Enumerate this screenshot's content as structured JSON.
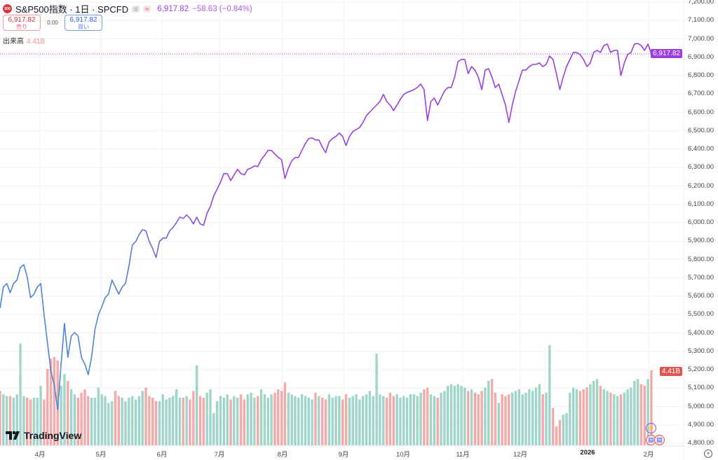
{
  "header": {
    "logo_text": "500",
    "title": "S&P500指数 · 1日 · SPCFD",
    "pill1": "=",
    "pill2": "≈",
    "price": "6,917.82",
    "change": "−58.63 (−0.84%)"
  },
  "trade": {
    "sell_price": "6,917.82",
    "sell_label": "売り",
    "spread": "0.00",
    "buy_price": "6,917.82",
    "buy_label": "買い"
  },
  "volume": {
    "label": "出来高",
    "value": "4.41B"
  },
  "badges": {
    "price": "6,917.82",
    "volume": "4.41B"
  },
  "brand": "TradingView",
  "colors": {
    "line_start": "#4a86d6",
    "line_end": "#9b3fe0",
    "up": "#9fd6c9",
    "down": "#f3aaa8",
    "grid": "#f0f1f3"
  },
  "chart_data": {
    "type": "line",
    "title": "S&P500指数 · 1日 · SPCFD",
    "ylim": [
      4800,
      7200
    ],
    "y_ticks": [
      "7,200.00",
      "7,100.00",
      "7,000.00",
      "6,900.00",
      "6,800.00",
      "6,700.00",
      "6,600.00",
      "6,500.00",
      "6,400.00",
      "6,300.00",
      "6,200.00",
      "6,100.00",
      "6,000.00",
      "5,900.00",
      "5,800.00",
      "5,700.00",
      "5,600.00",
      "5,500.00",
      "5,400.00",
      "5,300.00",
      "5,200.00",
      "5,100.00",
      "5,000.00",
      "4,900.00",
      "4,800.00"
    ],
    "x_ticks": [
      "4月",
      "5月",
      "6月",
      "7月",
      "8月",
      "9月",
      "10月",
      "11月",
      "12月",
      "2026",
      "2月"
    ],
    "last_price": 6917.82,
    "close": [
      5535,
      5650,
      5669,
      5619,
      5669,
      5688,
      5756,
      5771,
      5707,
      5592,
      5611,
      5650,
      5669,
      5497,
      5345,
      5192,
      5116,
      4983,
      5230,
      5451,
      5268,
      5383,
      5402,
      5383,
      5268,
      5230,
      5173,
      5268,
      5421,
      5497,
      5543,
      5592,
      5611,
      5688,
      5650,
      5611,
      5650,
      5669,
      5764,
      5878,
      5897,
      5935,
      5962,
      5955,
      5897,
      5859,
      5810,
      5897,
      5916,
      5916,
      5955,
      5974,
      6000,
      6030,
      6023,
      6042,
      6023,
      5993,
      6030,
      5993,
      5985,
      6050,
      6088,
      6145,
      6183,
      6221,
      6267,
      6267,
      6229,
      6260,
      6290,
      6267,
      6260,
      6290,
      6297,
      6309,
      6305,
      6343,
      6366,
      6393,
      6393,
      6374,
      6355,
      6343,
      6240,
      6297,
      6336,
      6355,
      6355,
      6393,
      6431,
      6458,
      6461,
      6450,
      6450,
      6412,
      6381,
      6439,
      6458,
      6469,
      6488,
      6469,
      6420,
      6469,
      6496,
      6507,
      6518,
      6545,
      6583,
      6602,
      6621,
      6640,
      6659,
      6698,
      6659,
      6640,
      6610,
      6640,
      6670,
      6698,
      6709,
      6716,
      6724,
      6735,
      6754,
      6724,
      6556,
      6659,
      6678,
      6640,
      6678,
      6716,
      6735,
      6735,
      6792,
      6876,
      6888,
      6888,
      6811,
      6849,
      6830,
      6792,
      6724,
      6830,
      6838,
      6792,
      6735,
      6754,
      6697,
      6640,
      6545,
      6640,
      6716,
      6773,
      6830,
      6830,
      6849,
      6861,
      6861,
      6869,
      6849,
      6861,
      6907,
      6888,
      6811,
      6724,
      6792,
      6849,
      6888,
      6926,
      6926,
      6914,
      6888,
      6849,
      6869,
      6926,
      6937,
      6926,
      6964,
      6972,
      6926,
      6937,
      6937,
      6800,
      6869,
      6914,
      6926,
      6972,
      6975,
      6964,
      6937,
      6972,
      6918
    ],
    "volume_B": [
      3.2,
      3.0,
      2.9,
      2.9,
      2.8,
      3.0,
      6.0,
      2.9,
      2.8,
      2.7,
      2.8,
      2.8,
      3.5,
      2.7,
      4.5,
      5.1,
      5.2,
      5.0,
      3.5,
      4.2,
      3.8,
      3.3,
      3.0,
      2.8,
      3.1,
      3.3,
      2.9,
      2.8,
      2.8,
      3.4,
      3.0,
      2.9,
      2.5,
      2.6,
      3.2,
      2.9,
      2.8,
      2.6,
      2.8,
      2.9,
      2.7,
      2.9,
      3.2,
      3.4,
      2.9,
      2.8,
      2.6,
      2.6,
      3.0,
      2.7,
      2.8,
      2.9,
      3.3,
      2.8,
      2.8,
      2.9,
      2.7,
      3.2,
      4.7,
      2.9,
      2.8,
      3.1,
      3.3,
      1.9,
      2.6,
      2.9,
      2.8,
      3.0,
      2.7,
      2.9,
      2.8,
      3.0,
      2.7,
      3.0,
      3.1,
      2.8,
      2.9,
      3.3,
      3.0,
      2.8,
      3.0,
      3.1,
      3.3,
      3.2,
      3.7,
      3.1,
      3.0,
      2.9,
      2.8,
      3.0,
      2.9,
      2.8,
      2.7,
      3.1,
      2.9,
      2.8,
      2.7,
      3.0,
      2.8,
      2.9,
      2.9,
      2.7,
      3.0,
      2.8,
      2.9,
      3.0,
      2.7,
      2.9,
      3.0,
      3.2,
      2.9,
      5.4,
      3.0,
      2.9,
      2.8,
      3.1,
      2.9,
      3.0,
      2.8,
      2.9,
      2.8,
      3.0,
      3.0,
      2.9,
      3.1,
      3.3,
      3.4,
      3.0,
      2.9,
      2.8,
      3.1,
      3.2,
      3.5,
      3.6,
      3.5,
      3.6,
      3.5,
      3.4,
      3.2,
      3.3,
      3.1,
      3.0,
      3.2,
      3.4,
      3.8,
      3.9,
      3.1,
      2.5,
      3.0,
      2.9,
      3.0,
      3.1,
      3.2,
      3.3,
      3.0,
      3.1,
      3.3,
      3.2,
      3.4,
      3.6,
      3.0,
      3.1,
      5.9,
      2.2,
      1.1,
      1.5,
      1.8,
      1.9,
      3.1,
      3.4,
      3.3,
      3.2,
      3.3,
      3.4,
      3.6,
      3.8,
      3.9,
      3.5,
      3.3,
      3.2,
      3.1,
      3.0,
      2.9,
      3.0,
      3.1,
      3.3,
      3.4,
      3.8,
      3.9,
      3.6,
      3.5,
      3.9,
      4.41
    ]
  }
}
